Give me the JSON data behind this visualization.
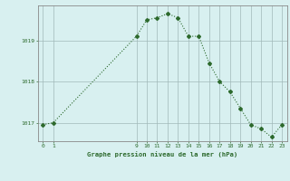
{
  "x": [
    0,
    1,
    9,
    10,
    11,
    12,
    13,
    14,
    15,
    16,
    17,
    18,
    19,
    20,
    21,
    22,
    23
  ],
  "y": [
    1016.95,
    1017.0,
    1019.1,
    1019.5,
    1019.55,
    1019.65,
    1019.55,
    1019.1,
    1019.1,
    1018.45,
    1018.0,
    1017.75,
    1017.35,
    1016.95,
    1016.85,
    1016.65,
    1016.95
  ],
  "line_color": "#2d6a2d",
  "bg_color": "#d8f0f0",
  "grid_color": "#b0c8c8",
  "ylabel_ticks": [
    1017,
    1018,
    1019
  ],
  "xlabel_ticks": [
    0,
    1,
    9,
    10,
    11,
    12,
    13,
    14,
    15,
    16,
    17,
    18,
    19,
    20,
    21,
    22,
    23
  ],
  "ylim": [
    1016.55,
    1019.85
  ],
  "xlim": [
    -0.5,
    23.5
  ],
  "xlabel": "Graphe pression niveau de la mer (hPa)",
  "marker": "D",
  "marker_size": 2.0,
  "line_width": 0.8
}
